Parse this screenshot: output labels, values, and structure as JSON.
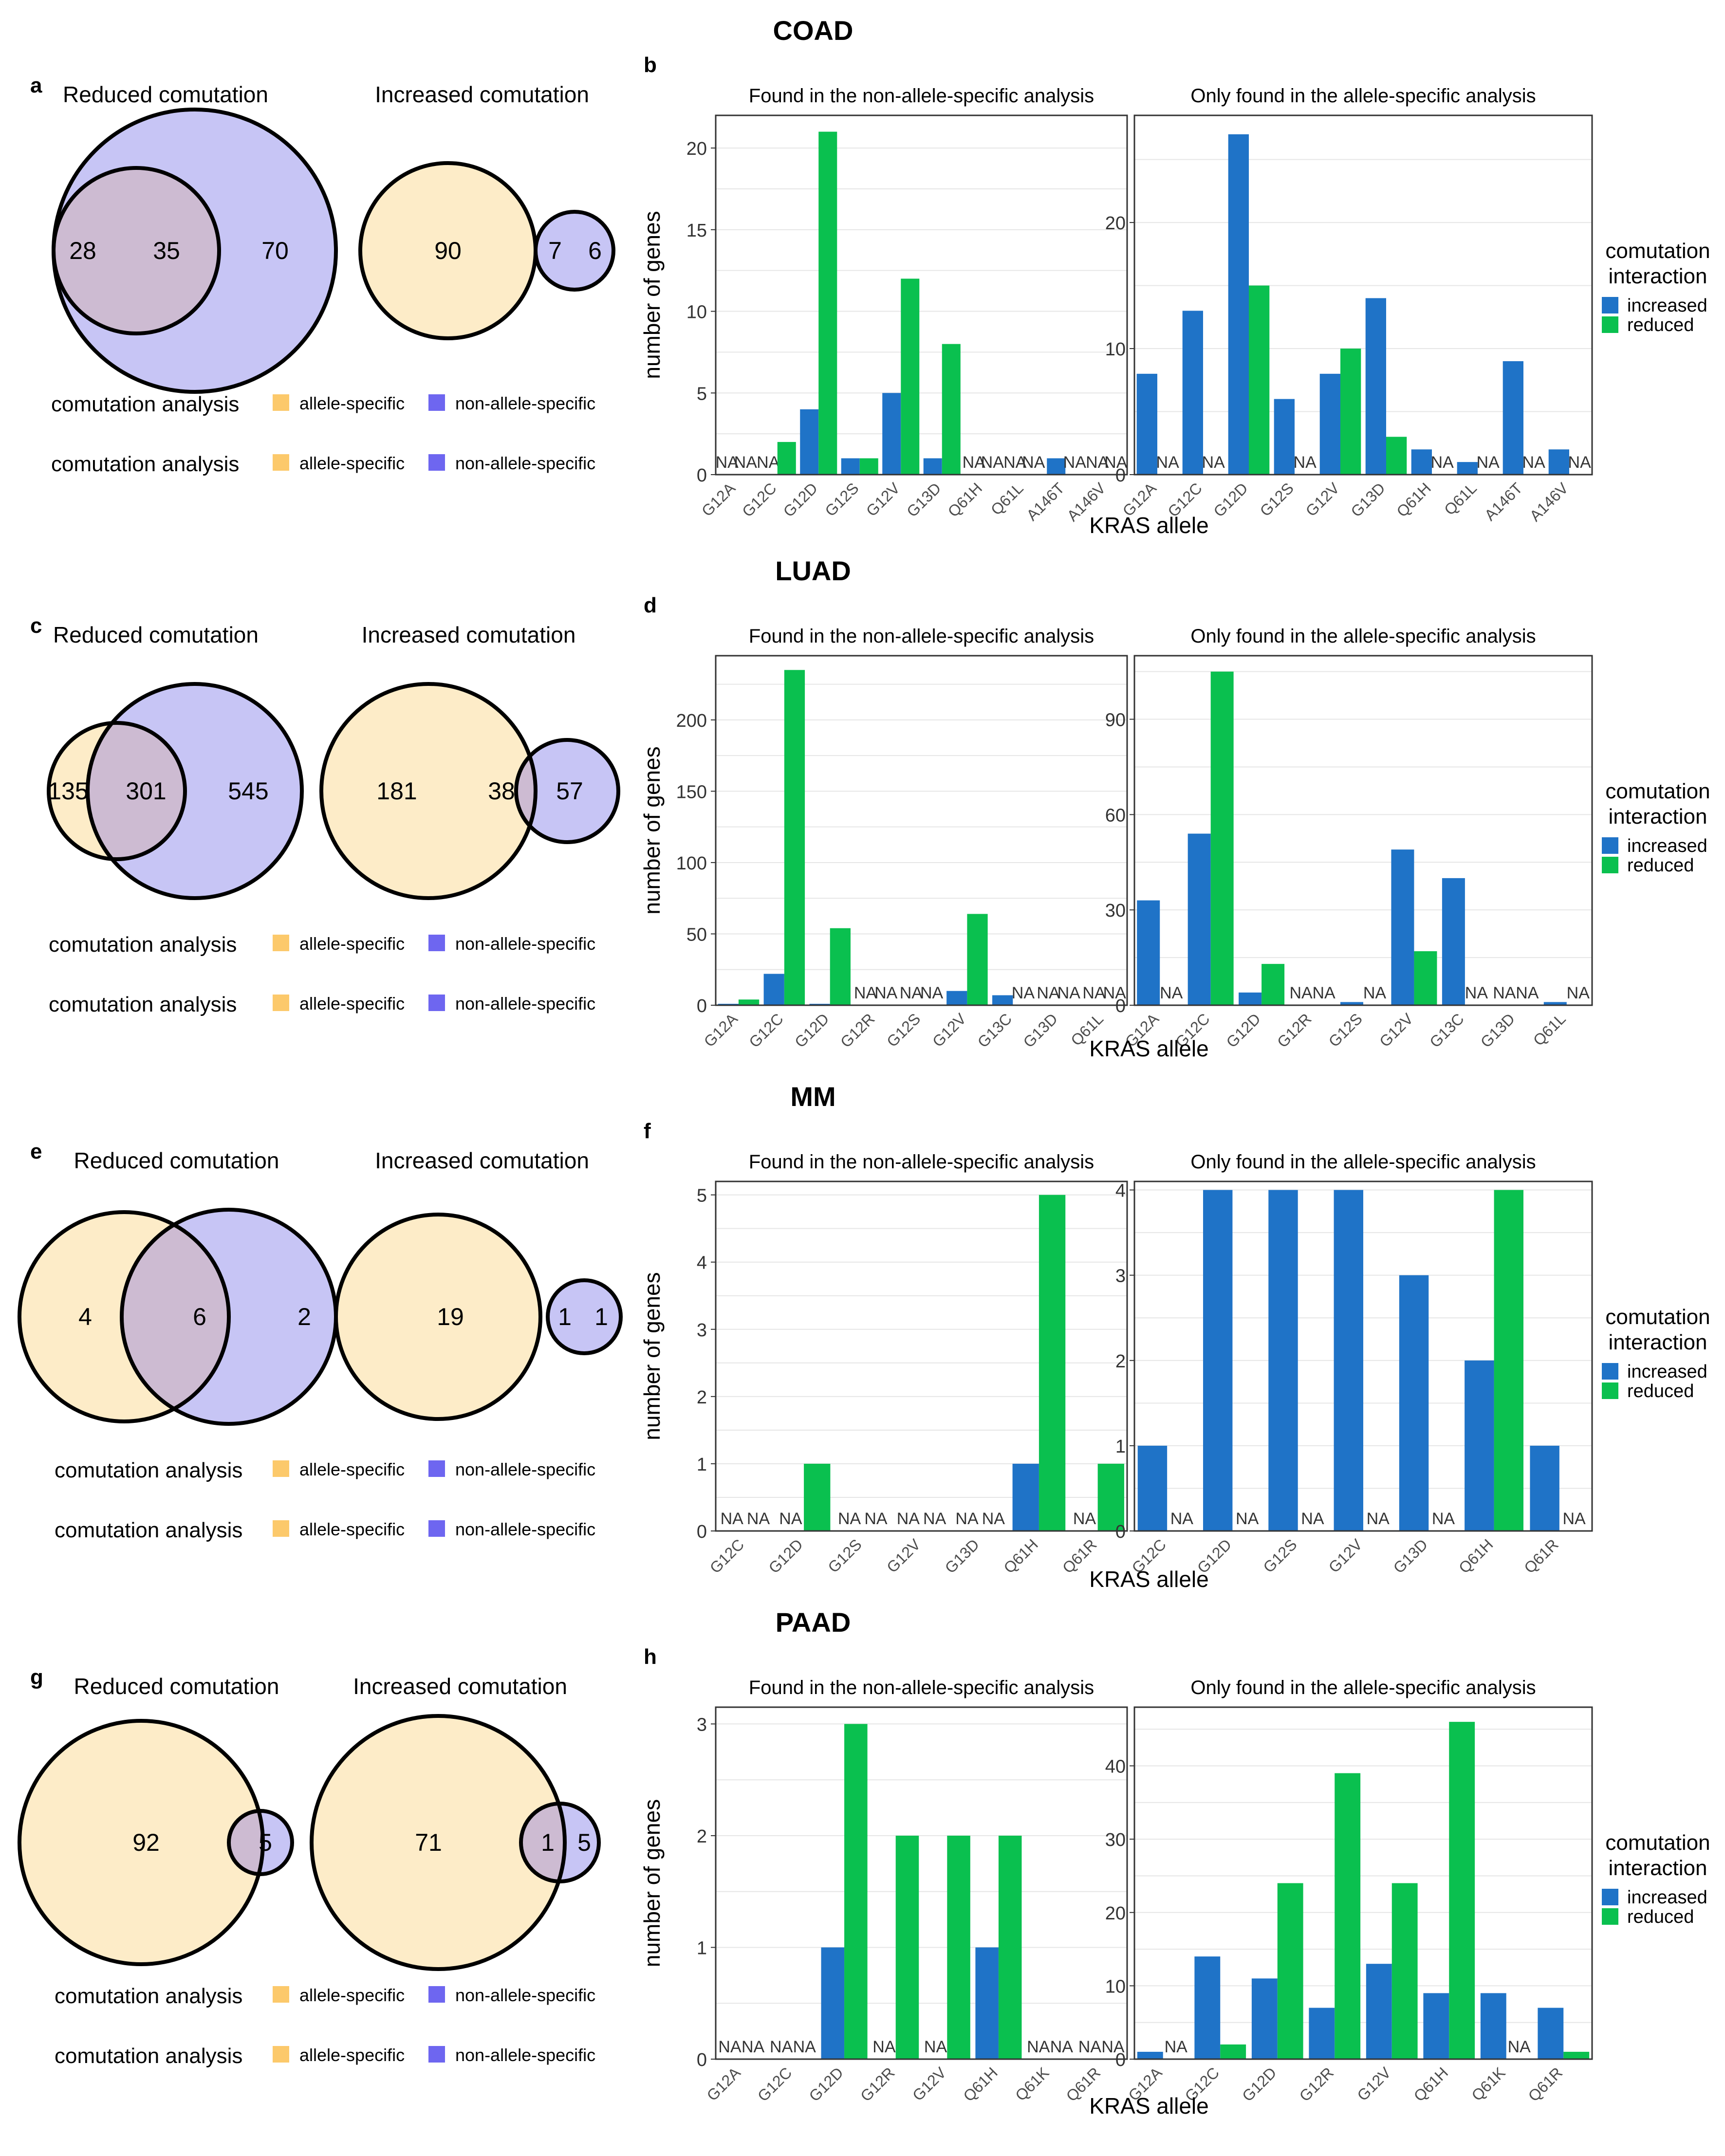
{
  "legend_texts": {
    "comutation_analysis": "comutation analysis",
    "allele_specific": "allele-specific",
    "non_allele_specific": "non-allele-specific",
    "interaction_title_1": "comutation",
    "interaction_title_2": "interaction",
    "increased": "increased",
    "reduced": "reduced"
  },
  "labels": {
    "reduced": "Reduced comutation",
    "increased": "Increased comutation",
    "left_facet": "Found in the non-allele-specific analysis",
    "right_facet": "Only found in the allele-specific analysis",
    "ylabel": "number of genes",
    "xlabel": "KRAS allele",
    "na": "NA"
  },
  "colors": {
    "allele_fill": "#fdecc8",
    "non_allele_fill": "#c7c5f5",
    "overlap_fill": "#cdbbd2",
    "legend_allele": "#fcc96b",
    "legend_non_allele": "#6e66f0",
    "increased": "#1f73c7",
    "reduced": "#0ac04f",
    "grid": "#e6e6e6"
  },
  "chart_data": [
    {
      "cancer": "COAD",
      "venn_letter": "a",
      "bar_letter": "b",
      "type": "bar",
      "venn_reduced": {
        "allele_only": "28",
        "both": "35",
        "non_allele_only": "70"
      },
      "venn_increased": {
        "allele_only": "90",
        "both": "7",
        "non_allele_only": "6"
      },
      "facets": [
        {
          "title": "Found in the non-allele-specific analysis",
          "categories": [
            "G12A",
            "G12C",
            "G12D",
            "G12S",
            "G12V",
            "G13D",
            "Q61H",
            "Q61L",
            "A146T",
            "A146V"
          ],
          "ylim": [
            0,
            22
          ],
          "yticks": [
            0,
            5,
            10,
            15,
            20
          ],
          "series": [
            {
              "name": "increased",
              "values": [
                null,
                null,
                4,
                1,
                5,
                1,
                null,
                null,
                1,
                null
              ]
            },
            {
              "name": "reduced",
              "values": [
                null,
                2,
                21,
                1,
                12,
                8,
                null,
                null,
                null,
                null
              ]
            }
          ]
        },
        {
          "title": "Only found in the allele-specific analysis",
          "categories": [
            "G12A",
            "G12C",
            "G12D",
            "G12S",
            "G12V",
            "G13D",
            "Q61H",
            "Q61L",
            "A146T",
            "A146V"
          ],
          "ylim": [
            0,
            28.5
          ],
          "yticks": [
            0,
            10,
            20
          ],
          "series": [
            {
              "name": "increased",
              "values": [
                8,
                13,
                27,
                6,
                8,
                14,
                2,
                1,
                9,
                2
              ]
            },
            {
              "name": "reduced",
              "values": [
                null,
                null,
                15,
                null,
                10,
                3,
                null,
                null,
                null,
                null
              ]
            }
          ]
        }
      ]
    },
    {
      "cancer": "LUAD",
      "venn_letter": "c",
      "bar_letter": "d",
      "type": "bar",
      "venn_reduced": {
        "allele_only": "135",
        "both": "301",
        "non_allele_only": "545"
      },
      "venn_increased": {
        "allele_only": "181",
        "both": "38",
        "non_allele_only": "57"
      },
      "facets": [
        {
          "title": "Found in the non-allele-specific analysis",
          "categories": [
            "G12A",
            "G12C",
            "G12D",
            "G12R",
            "G12S",
            "G12V",
            "G13C",
            "G13D",
            "Q61L"
          ],
          "ylim": [
            0,
            245
          ],
          "yticks": [
            0,
            50,
            100,
            150,
            200
          ],
          "series": [
            {
              "name": "increased",
              "values": [
                1,
                22,
                1,
                null,
                null,
                10,
                7,
                null,
                null
              ]
            },
            {
              "name": "reduced",
              "values": [
                4,
                235,
                54,
                null,
                null,
                64,
                null,
                null,
                null
              ]
            }
          ]
        },
        {
          "title": "Only found in the allele-specific analysis",
          "categories": [
            "G12A",
            "G12C",
            "G12D",
            "G12R",
            "G12S",
            "G12V",
            "G13C",
            "G13D",
            "Q61L"
          ],
          "ylim": [
            0,
            110
          ],
          "yticks": [
            0,
            30,
            60,
            90
          ],
          "series": [
            {
              "name": "increased",
              "values": [
                33,
                54,
                4,
                null,
                1,
                49,
                40,
                null,
                1
              ]
            },
            {
              "name": "reduced",
              "values": [
                null,
                105,
                13,
                null,
                null,
                17,
                null,
                null,
                null
              ]
            }
          ]
        }
      ]
    },
    {
      "cancer": "MM",
      "venn_letter": "e",
      "bar_letter": "f",
      "type": "bar",
      "venn_reduced": {
        "allele_only": "4",
        "both": "6",
        "non_allele_only": "2"
      },
      "venn_increased": {
        "allele_only": "19",
        "both": "1",
        "non_allele_only": "1"
      },
      "facets": [
        {
          "title": "Found in the non-allele-specific analysis",
          "categories": [
            "G12C",
            "G12D",
            "G12S",
            "G12V",
            "G13D",
            "Q61H",
            "Q61R"
          ],
          "ylim": [
            0,
            5.2
          ],
          "yticks": [
            0,
            1,
            2,
            3,
            4,
            5
          ],
          "series": [
            {
              "name": "increased",
              "values": [
                null,
                null,
                null,
                null,
                null,
                1,
                null
              ]
            },
            {
              "name": "reduced",
              "values": [
                null,
                1,
                null,
                null,
                null,
                5,
                1
              ]
            }
          ]
        },
        {
          "title": "Only found in the allele-specific analysis",
          "categories": [
            "G12C",
            "G12D",
            "G12S",
            "G12V",
            "G13D",
            "Q61H",
            "Q61R"
          ],
          "ylim": [
            0,
            4.1
          ],
          "yticks": [
            0,
            1,
            2,
            3,
            4
          ],
          "series": [
            {
              "name": "increased",
              "values": [
                1,
                4,
                4,
                4,
                3,
                2,
                1
              ]
            },
            {
              "name": "reduced",
              "values": [
                null,
                null,
                null,
                null,
                null,
                4,
                null
              ]
            }
          ]
        }
      ]
    },
    {
      "cancer": "PAAD",
      "venn_letter": "g",
      "bar_letter": "h",
      "type": "bar",
      "venn_reduced": {
        "allele_only": "92",
        "both": "5",
        "non_allele_only": ""
      },
      "venn_increased": {
        "allele_only": "71",
        "both": "1",
        "non_allele_only": "5"
      },
      "facets": [
        {
          "title": "Found in the non-allele-specific analysis",
          "categories": [
            "G12A",
            "G12C",
            "G12D",
            "G12R",
            "G12V",
            "Q61H",
            "Q61K",
            "Q61R"
          ],
          "ylim": [
            0,
            3.15
          ],
          "yticks": [
            0,
            1,
            2,
            3
          ],
          "series": [
            {
              "name": "increased",
              "values": [
                null,
                null,
                1,
                null,
                null,
                1,
                null,
                null
              ]
            },
            {
              "name": "reduced",
              "values": [
                null,
                null,
                3,
                2,
                2,
                2,
                null,
                null
              ]
            }
          ]
        },
        {
          "title": "Only found in the allele-specific analysis",
          "categories": [
            "G12A",
            "G12C",
            "G12D",
            "G12R",
            "G12V",
            "Q61H",
            "Q61K",
            "Q61R"
          ],
          "ylim": [
            0,
            48
          ],
          "yticks": [
            0,
            10,
            20,
            30,
            40
          ],
          "series": [
            {
              "name": "increased",
              "values": [
                1,
                14,
                11,
                7,
                13,
                9,
                9,
                7
              ]
            },
            {
              "name": "reduced",
              "values": [
                null,
                2,
                24,
                39,
                24,
                46,
                null,
                1
              ]
            }
          ]
        }
      ]
    }
  ]
}
